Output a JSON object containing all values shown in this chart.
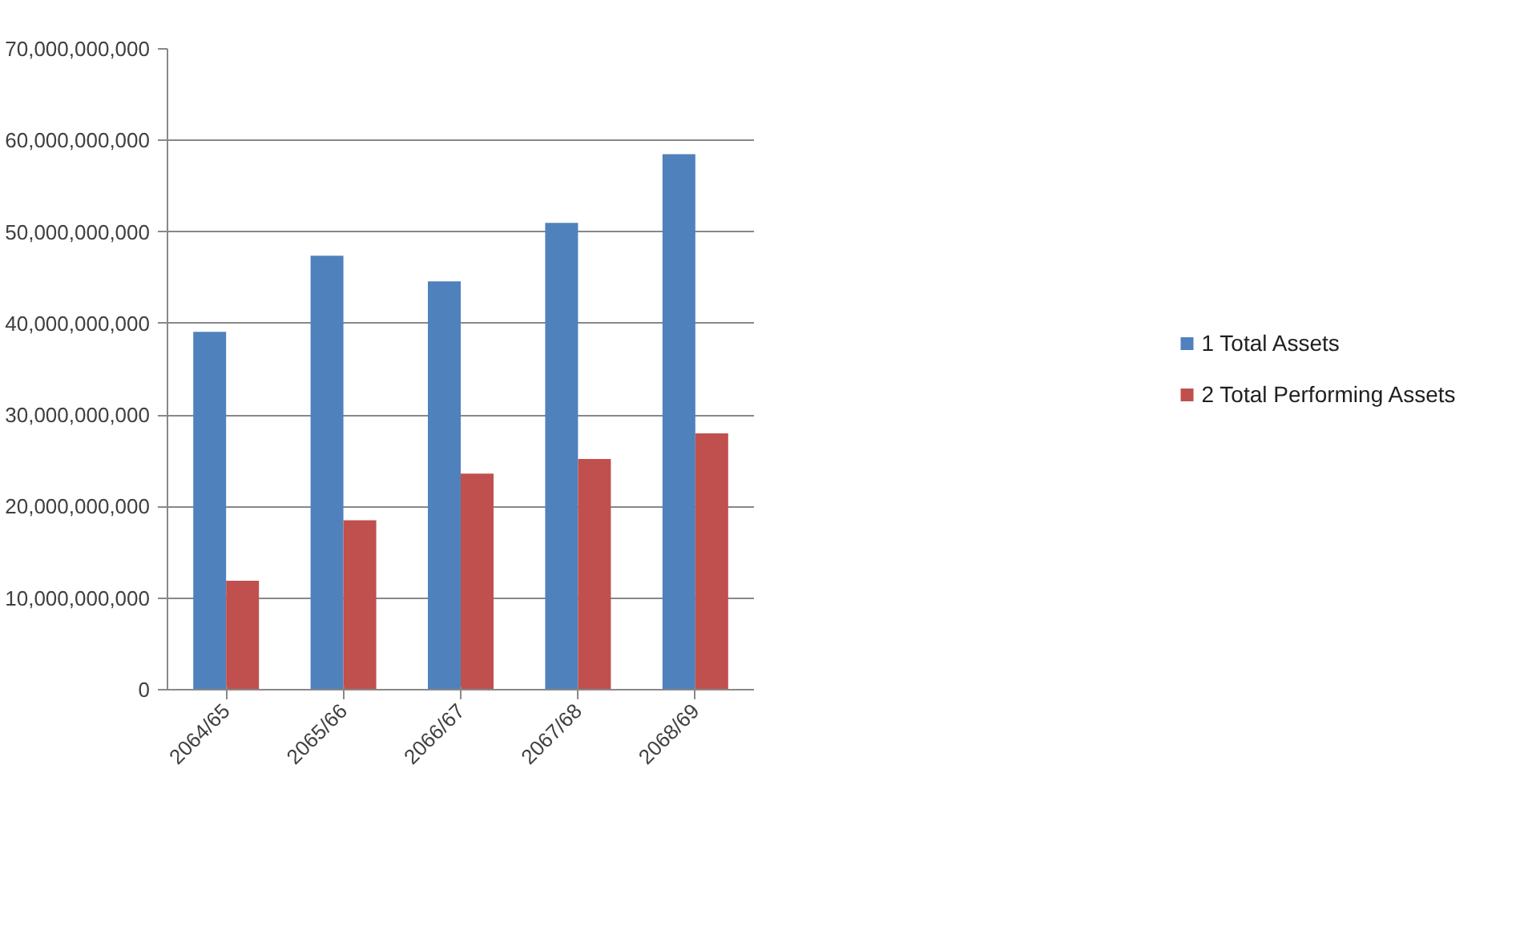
{
  "chart_data": {
    "type": "bar",
    "categories": [
      "2064/65",
      "2065/66",
      "2066/67",
      "2067/68",
      "2068/69"
    ],
    "series": [
      {
        "name": "1 Total Assets",
        "color": "#4f81bd",
        "values": [
          39100000000,
          47400000000,
          44600000000,
          51000000000,
          58500000000
        ]
      },
      {
        "name": "2 Total Performing Assets",
        "color": "#c0504d",
        "values": [
          11900000000,
          18500000000,
          23600000000,
          25200000000,
          28000000000
        ]
      }
    ],
    "ylim": [
      0,
      70000000000
    ],
    "yticks": [
      {
        "value": 0,
        "label": "0"
      },
      {
        "value": 10000000000,
        "label": "10,000,000,000"
      },
      {
        "value": 20000000000,
        "label": "20,000,000,000"
      },
      {
        "value": 30000000000,
        "label": "30,000,000,000"
      },
      {
        "value": 40000000000,
        "label": "40,000,000,000"
      },
      {
        "value": 50000000000,
        "label": "50,000,000,000"
      },
      {
        "value": 60000000000,
        "label": "60,000,000,000"
      },
      {
        "value": 70000000000,
        "label": "70,000,000,000"
      }
    ],
    "grid": "y",
    "legend": "right"
  }
}
